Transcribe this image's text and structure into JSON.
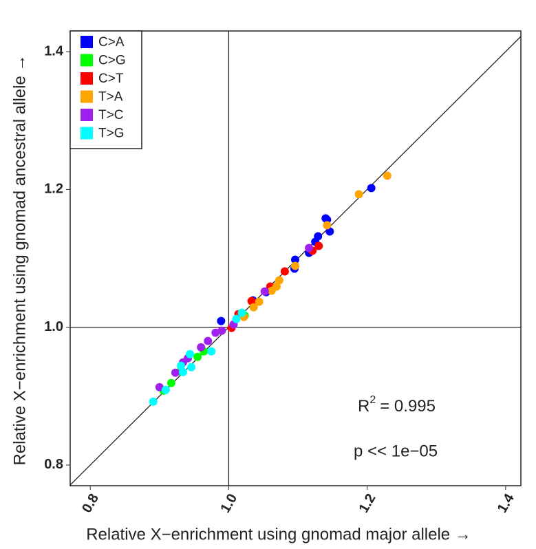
{
  "chart_data": {
    "type": "scatter",
    "x_label": "Relative X−enrichment using gnomad major allele →",
    "y_label": "Relative X−enrichment using gnomad ancestral allele →",
    "xlim": [
      0.771,
      1.422
    ],
    "ylim": [
      0.77,
      1.43
    ],
    "xticks": [
      0.8,
      {
        "value": 1,
        "label": "1.0"
      },
      1.2,
      1.4
    ],
    "yticks": [
      0.8,
      {
        "value": 1,
        "label": "1.0"
      },
      1.2,
      1.4
    ],
    "vline": 1,
    "hline": 1,
    "identity_line": true,
    "legend": "top-left",
    "annotations": {
      "r2_symbol": "R",
      "r2_exponent": "2",
      "r2_value": "= 0.995",
      "p_value": "p << 1e−05"
    },
    "series": [
      {
        "name": "C>A",
        "color": "#0000ff",
        "x": [
          1.206,
          1.14,
          1.142,
          1.146,
          1.129,
          1.125,
          1.116,
          1.096,
          1.095,
          1.054,
          1.035,
          0.989
        ],
        "values": [
          1.202,
          1.158,
          1.156,
          1.139,
          1.132,
          1.124,
          1.108,
          1.098,
          1.085,
          1.051,
          1.039,
          1.009
        ]
      },
      {
        "name": "C>G",
        "color": "#00ff00",
        "x": [
          1.023,
          0.964,
          0.955,
          0.917,
          0.906,
          0.93
        ],
        "values": [
          1.017,
          0.965,
          0.957,
          0.919,
          0.908,
          0.936
        ]
      },
      {
        "name": "C>T",
        "color": "#ff0000",
        "x": [
          1.13,
          1.121,
          1.081,
          1.06,
          1.033,
          1.014,
          1.004
        ],
        "values": [
          1.118,
          1.111,
          1.081,
          1.059,
          1.038,
          1.019,
          0.999
        ]
      },
      {
        "name": "T>A",
        "color": "#ffa500",
        "x": [
          1.229,
          1.188,
          1.142,
          1.096,
          1.073,
          1.069,
          1.062,
          1.044,
          1.036,
          1.022
        ],
        "values": [
          1.22,
          1.193,
          1.148,
          1.089,
          1.068,
          1.059,
          1.053,
          1.037,
          1.029,
          1.015
        ]
      },
      {
        "name": "T>C",
        "color": "#a020f0",
        "x": [
          1.116,
          1.052,
          1.007,
          0.99,
          0.981,
          0.97,
          0.96,
          0.941,
          0.934,
          0.923,
          0.9
        ],
        "values": [
          1.115,
          1.052,
          1.004,
          0.995,
          0.992,
          0.98,
          0.971,
          0.955,
          0.949,
          0.934,
          0.913
        ]
      },
      {
        "name": "T>G",
        "color": "#00ffff",
        "x": [
          1.019,
          1.011,
          0.975,
          0.944,
          0.946,
          0.934,
          0.909,
          0.891,
          0.931
        ],
        "values": [
          1.021,
          1.012,
          0.965,
          0.961,
          0.942,
          0.935,
          0.909,
          0.892,
          0.944
        ]
      }
    ]
  }
}
